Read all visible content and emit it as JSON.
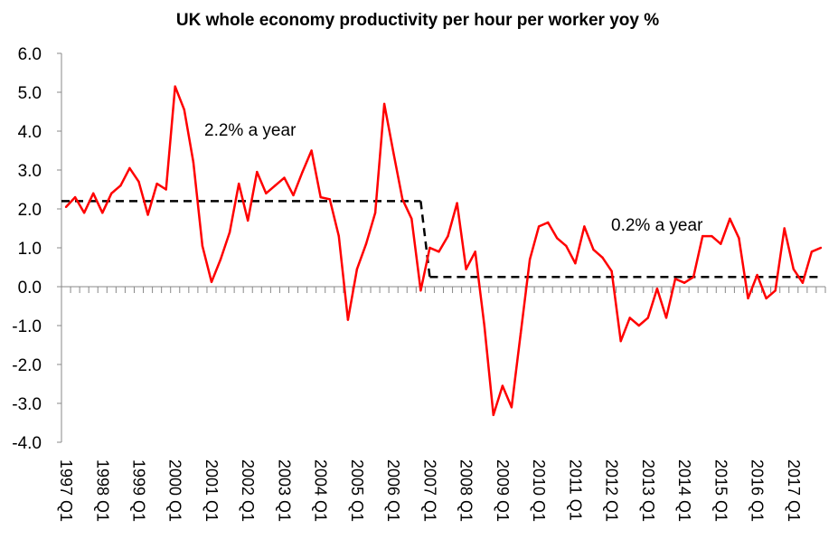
{
  "chart_data": {
    "type": "line",
    "title": "UK whole economy productivity per hour per worker yoy %",
    "xlabel": "",
    "ylabel": "",
    "ylim": [
      -4.0,
      6.0
    ],
    "yticks": [
      "-4.0",
      "-3.0",
      "-2.0",
      "-1.0",
      "0.0",
      "1.0",
      "2.0",
      "3.0",
      "4.0",
      "5.0",
      "6.0"
    ],
    "x_start": "1997 Q1",
    "x_tick_labels": [
      "1997 Q1",
      "1998 Q1",
      "1999 Q1",
      "2000 Q1",
      "2001 Q1",
      "2002 Q1",
      "2003 Q1",
      "2004 Q1",
      "2005 Q1",
      "2006 Q1",
      "2007 Q1",
      "2008 Q1",
      "2009 Q1",
      "2010 Q1",
      "2011 Q1",
      "2012 Q1",
      "2013 Q1",
      "2014 Q1",
      "2015 Q1",
      "2016 Q1",
      "2017 Q1"
    ],
    "grid": false,
    "legend": "none",
    "series": [
      {
        "color": "#ff0000",
        "style": "solid",
        "values": [
          2.05,
          2.3,
          1.9,
          2.4,
          1.9,
          2.4,
          2.6,
          3.05,
          2.7,
          1.85,
          2.65,
          2.5,
          5.15,
          4.55,
          3.2,
          1.05,
          0.12,
          0.7,
          1.4,
          2.65,
          1.7,
          2.95,
          2.4,
          2.6,
          2.8,
          2.35,
          2.95,
          3.5,
          2.3,
          2.25,
          1.3,
          -0.85,
          0.45,
          1.1,
          1.9,
          4.7,
          3.45,
          2.25,
          1.75,
          -0.1,
          1.0,
          0.9,
          1.3,
          2.15,
          0.45,
          0.9,
          -1.0,
          -3.3,
          -2.55,
          -3.1,
          -1.2,
          0.7,
          1.55,
          1.65,
          1.25,
          1.05,
          0.6,
          1.55,
          0.95,
          0.75,
          0.4,
          -1.4,
          -0.8,
          -1.0,
          -0.8,
          -0.05,
          -0.8,
          0.2,
          0.1,
          0.25,
          1.3,
          1.3,
          1.1,
          1.75,
          1.25,
          -0.3,
          0.3,
          -0.3,
          -0.1,
          1.5,
          0.45,
          0.1,
          0.9,
          1.0
        ]
      },
      {
        "color": "#000000",
        "style": "dashed",
        "segments": [
          {
            "from": "1997 Q1",
            "to": "2006 Q4",
            "value": 2.2,
            "label": "2.2% a year"
          },
          {
            "from": "2007 Q1",
            "to": "2017 Q4",
            "value": 0.25,
            "label": "0.2% a year"
          }
        ]
      }
    ],
    "annotations": [
      "2.2% a year",
      "0.2% a year"
    ]
  }
}
